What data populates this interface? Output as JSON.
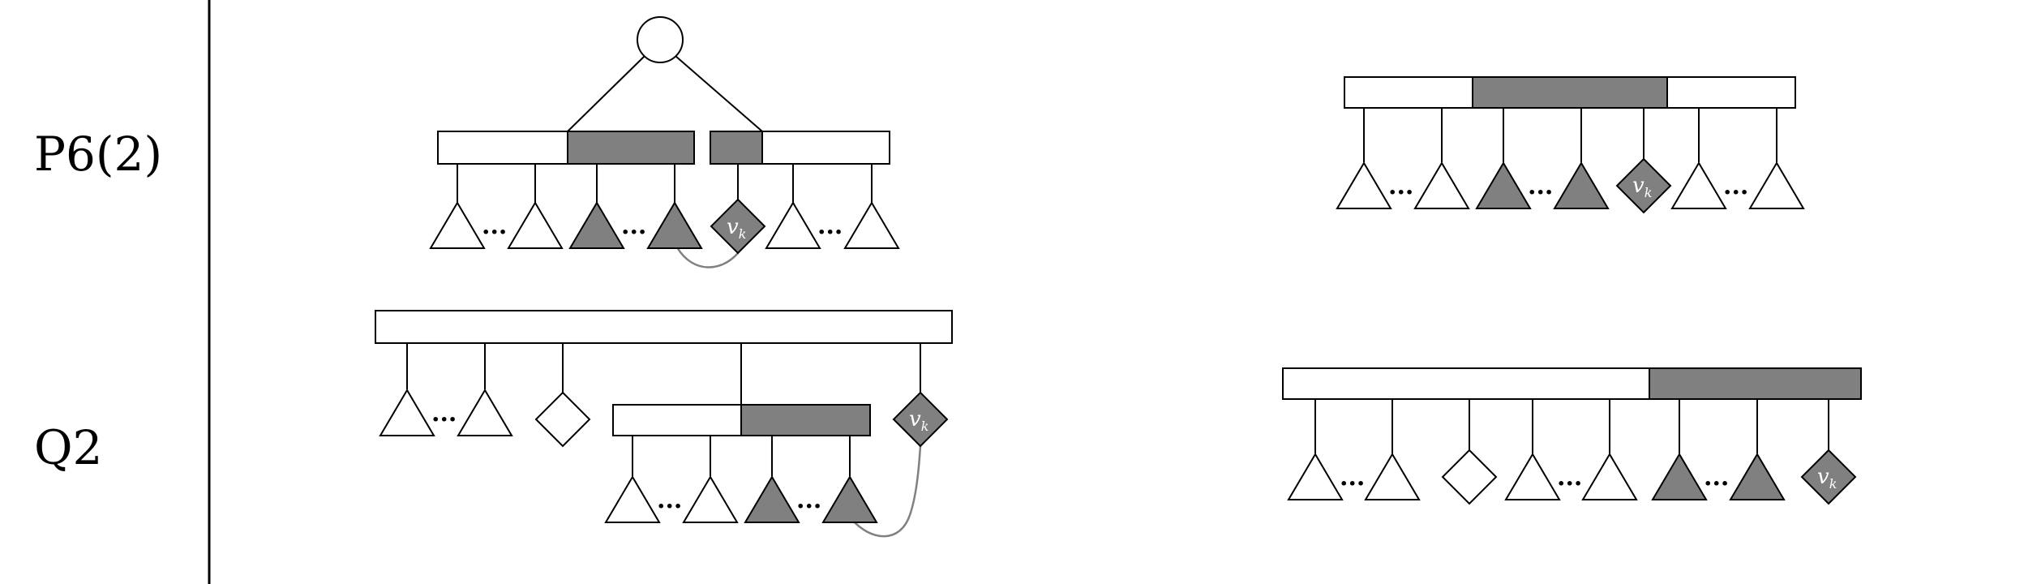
{
  "rules": [
    {
      "id": "p6-2",
      "label": "P6(2)"
    },
    {
      "id": "q2",
      "label": "Q2"
    }
  ],
  "node_label": {
    "main": "v",
    "sub": "k"
  },
  "colors": {
    "black": "#000000",
    "gray_fill": "#808080",
    "curve": "#808080",
    "white": "#ffffff"
  },
  "dots": "···"
}
